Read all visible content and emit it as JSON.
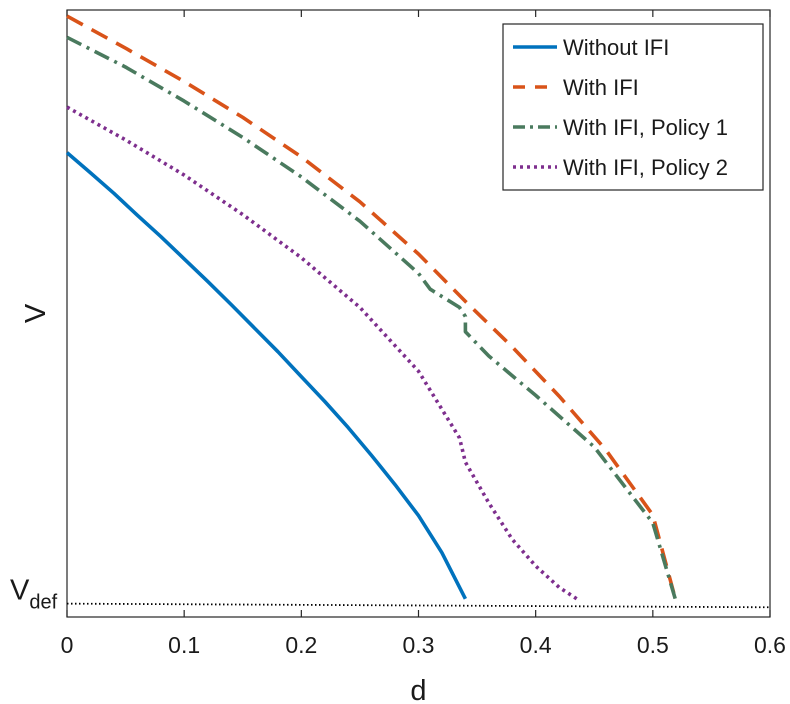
{
  "chart_data": {
    "type": "line",
    "xlabel": "d",
    "ylabel": "V",
    "xlim": [
      0,
      0.6
    ],
    "ylim": [
      0,
      1
    ],
    "x_ticks": [
      "0",
      "0.1",
      "0.2",
      "0.3",
      "0.4",
      "0.5",
      "0.6"
    ],
    "y_annotation": {
      "main": "V",
      "subscript": "def",
      "value": 0.022
    },
    "grid": false,
    "legend_position": "top-right",
    "reference_line": {
      "x": [
        0,
        0.6
      ],
      "y": [
        0.022,
        0.016
      ],
      "color": "#000000",
      "style": "dotted"
    },
    "series": [
      {
        "name": "Without IFI",
        "color": "#0072BD",
        "style": "solid",
        "x": [
          0,
          0.02,
          0.04,
          0.06,
          0.08,
          0.1,
          0.12,
          0.14,
          0.16,
          0.18,
          0.2,
          0.22,
          0.24,
          0.26,
          0.28,
          0.3,
          0.32,
          0.34
        ],
        "y": [
          0.765,
          0.732,
          0.698,
          0.662,
          0.627,
          0.59,
          0.553,
          0.515,
          0.476,
          0.437,
          0.396,
          0.355,
          0.312,
          0.266,
          0.218,
          0.167,
          0.106,
          0.03
        ]
      },
      {
        "name": "With IFI",
        "color": "#D95319",
        "style": "dashed",
        "x": [
          0,
          0.05,
          0.1,
          0.15,
          0.2,
          0.25,
          0.3,
          0.34,
          0.38,
          0.42,
          0.46,
          0.5,
          0.52
        ],
        "y": [
          0.99,
          0.937,
          0.882,
          0.823,
          0.758,
          0.684,
          0.598,
          0.52,
          0.445,
          0.364,
          0.275,
          0.168,
          0.024
        ]
      },
      {
        "name": "With IFI, Policy 1",
        "color": "#4A7A5E",
        "style": "dashdot",
        "x": [
          0,
          0.05,
          0.1,
          0.15,
          0.2,
          0.25,
          0.3,
          0.31,
          0.335,
          0.34,
          0.34,
          0.36,
          0.4,
          0.45,
          0.5,
          0.52
        ],
        "y": [
          0.955,
          0.906,
          0.85,
          0.79,
          0.725,
          0.652,
          0.566,
          0.54,
          0.51,
          0.495,
          0.47,
          0.43,
          0.365,
          0.28,
          0.155,
          0.024
        ]
      },
      {
        "name": "With IFI, Policy 2",
        "color": "#7E2F8E",
        "style": "dotted",
        "x": [
          0,
          0.05,
          0.1,
          0.15,
          0.2,
          0.25,
          0.3,
          0.335,
          0.34,
          0.36,
          0.38,
          0.4,
          0.42,
          0.435
        ],
        "y": [
          0.84,
          0.786,
          0.728,
          0.663,
          0.592,
          0.51,
          0.405,
          0.295,
          0.255,
          0.188,
          0.128,
          0.084,
          0.049,
          0.03
        ]
      }
    ]
  }
}
